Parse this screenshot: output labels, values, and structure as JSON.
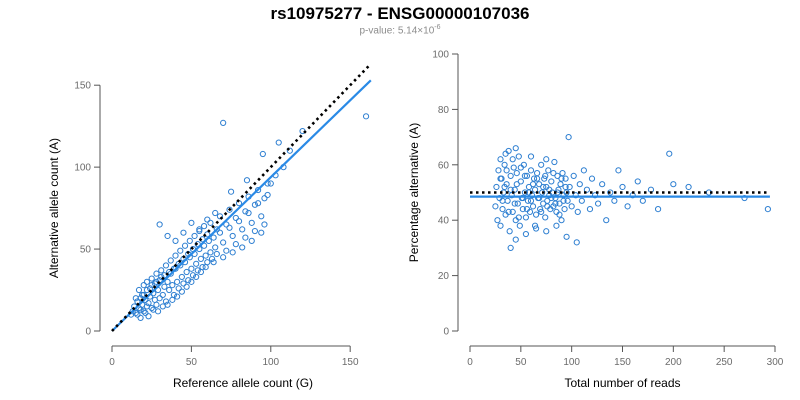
{
  "header": {
    "title": "rs10975277 - ENSG00000107036",
    "pvalue_prefix": "p-value: 5.14×10",
    "pvalue_exponent": "-6"
  },
  "colors": {
    "points": "#2e7fd1",
    "fit_line": "#2a8ae6",
    "reference_line": "#000000",
    "axis": "#555555"
  },
  "chart_data": [
    {
      "type": "scatter",
      "xlabel": "Reference allele count (G)",
      "ylabel": "Alternative allele count (A)",
      "xlim": [
        0,
        165
      ],
      "ylim": [
        0,
        155
      ],
      "xticks": [
        0,
        50,
        100,
        150
      ],
      "yticks": [
        0,
        50,
        100,
        150
      ],
      "grid": false,
      "fit_line": [
        [
          0,
          0
        ],
        [
          163,
          153
        ]
      ],
      "reference_line": [
        [
          0,
          0
        ],
        [
          163,
          163
        ]
      ],
      "points": [
        [
          12,
          10
        ],
        [
          13,
          12
        ],
        [
          14,
          15
        ],
        [
          15,
          11
        ],
        [
          16,
          18
        ],
        [
          17,
          14
        ],
        [
          18,
          20
        ],
        [
          18,
          13
        ],
        [
          19,
          16
        ],
        [
          20,
          22
        ],
        [
          20,
          12
        ],
        [
          21,
          19
        ],
        [
          22,
          25
        ],
        [
          22,
          15
        ],
        [
          23,
          17
        ],
        [
          24,
          21
        ],
        [
          25,
          28
        ],
        [
          25,
          14
        ],
        [
          26,
          23
        ],
        [
          27,
          19
        ],
        [
          28,
          30
        ],
        [
          28,
          16
        ],
        [
          29,
          25
        ],
        [
          30,
          20
        ],
        [
          31,
          33
        ],
        [
          32,
          22
        ],
        [
          33,
          27
        ],
        [
          34,
          18
        ],
        [
          35,
          30
        ],
        [
          36,
          25
        ],
        [
          37,
          35
        ],
        [
          38,
          28
        ],
        [
          39,
          22
        ],
        [
          40,
          38
        ],
        [
          41,
          30
        ],
        [
          42,
          26
        ],
        [
          43,
          40
        ],
        [
          44,
          33
        ],
        [
          45,
          29
        ],
        [
          46,
          42
        ],
        [
          47,
          36
        ],
        [
          48,
          31
        ],
        [
          49,
          45
        ],
        [
          50,
          38
        ],
        [
          51,
          34
        ],
        [
          52,
          47
        ],
        [
          53,
          41
        ],
        [
          54,
          37
        ],
        [
          55,
          50
        ],
        [
          56,
          44
        ],
        [
          57,
          39
        ],
        [
          58,
          52
        ],
        [
          59,
          46
        ],
        [
          60,
          42
        ],
        [
          61,
          55
        ],
        [
          62,
          48
        ],
        [
          63,
          44
        ],
        [
          64,
          57
        ],
        [
          65,
          51
        ],
        [
          66,
          47
        ],
        [
          68,
          60
        ],
        [
          70,
          54
        ],
        [
          72,
          49
        ],
        [
          74,
          63
        ],
        [
          76,
          58
        ],
        [
          78,
          53
        ],
        [
          80,
          67
        ],
        [
          82,
          62
        ],
        [
          84,
          57
        ],
        [
          86,
          72
        ],
        [
          88,
          66
        ],
        [
          90,
          61
        ],
        [
          92,
          78
        ],
        [
          94,
          70
        ],
        [
          96,
          65
        ],
        [
          98,
          83
        ],
        [
          100,
          90
        ],
        [
          103,
          95
        ],
        [
          108,
          100
        ],
        [
          112,
          110
        ],
        [
          120,
          122
        ],
        [
          70,
          127
        ],
        [
          160,
          131
        ],
        [
          15,
          20
        ],
        [
          16,
          10
        ],
        [
          17,
          25
        ],
        [
          18,
          8
        ],
        [
          19,
          22
        ],
        [
          20,
          28
        ],
        [
          21,
          11
        ],
        [
          22,
          30
        ],
        [
          23,
          9
        ],
        [
          24,
          26
        ],
        [
          25,
          32
        ],
        [
          26,
          13
        ],
        [
          27,
          29
        ],
        [
          28,
          35
        ],
        [
          29,
          12
        ],
        [
          30,
          31
        ],
        [
          31,
          37
        ],
        [
          32,
          15
        ],
        [
          33,
          34
        ],
        [
          34,
          40
        ],
        [
          35,
          16
        ],
        [
          36,
          36
        ],
        [
          37,
          43
        ],
        [
          38,
          19
        ],
        [
          39,
          38
        ],
        [
          40,
          46
        ],
        [
          41,
          21
        ],
        [
          42,
          41
        ],
        [
          43,
          49
        ],
        [
          44,
          24
        ],
        [
          45,
          44
        ],
        [
          46,
          52
        ],
        [
          47,
          27
        ],
        [
          48,
          47
        ],
        [
          49,
          55
        ],
        [
          50,
          30
        ],
        [
          51,
          50
        ],
        [
          52,
          58
        ],
        [
          53,
          33
        ],
        [
          54,
          53
        ],
        [
          55,
          61
        ],
        [
          56,
          36
        ],
        [
          57,
          56
        ],
        [
          58,
          64
        ],
        [
          59,
          39
        ],
        [
          60,
          59
        ],
        [
          62,
          66
        ],
        [
          64,
          42
        ],
        [
          66,
          62
        ],
        [
          68,
          70
        ],
        [
          70,
          45
        ],
        [
          72,
          65
        ],
        [
          74,
          74
        ],
        [
          76,
          48
        ],
        [
          78,
          69
        ],
        [
          80,
          78
        ],
        [
          82,
          51
        ],
        [
          84,
          73
        ],
        [
          86,
          82
        ],
        [
          88,
          55
        ],
        [
          90,
          77
        ],
        [
          92,
          86
        ],
        [
          94,
          60
        ],
        [
          96,
          81
        ],
        [
          98,
          90
        ],
        [
          30,
          65
        ],
        [
          35,
          58
        ],
        [
          40,
          55
        ],
        [
          45,
          60
        ],
        [
          50,
          66
        ],
        [
          55,
          62
        ],
        [
          60,
          68
        ],
        [
          65,
          72
        ],
        [
          75,
          85
        ],
        [
          85,
          92
        ],
        [
          95,
          108
        ],
        [
          105,
          115
        ]
      ]
    },
    {
      "type": "scatter",
      "xlabel": "Total number of reads",
      "ylabel": "Percentage alternative (A)",
      "xlim": [
        0,
        300
      ],
      "ylim": [
        0,
        100
      ],
      "xticks": [
        0,
        50,
        100,
        150,
        200,
        250,
        300
      ],
      "yticks": [
        0,
        20,
        40,
        60,
        80,
        100
      ],
      "grid": false,
      "fit_line": [
        [
          0,
          48.5
        ],
        [
          295,
          48.5
        ]
      ],
      "reference_line": [
        [
          0,
          50
        ],
        [
          295,
          50
        ]
      ],
      "points": [
        [
          25,
          45
        ],
        [
          26,
          52
        ],
        [
          27,
          40
        ],
        [
          28,
          58
        ],
        [
          29,
          48
        ],
        [
          30,
          62
        ],
        [
          30,
          38
        ],
        [
          31,
          55
        ],
        [
          32,
          44
        ],
        [
          33,
          50
        ],
        [
          34,
          60
        ],
        [
          35,
          42
        ],
        [
          36,
          53
        ],
        [
          37,
          47
        ],
        [
          38,
          65
        ],
        [
          39,
          36
        ],
        [
          40,
          56
        ],
        [
          41,
          49
        ],
        [
          42,
          43
        ],
        [
          43,
          59
        ],
        [
          44,
          51
        ],
        [
          45,
          40
        ],
        [
          46,
          57
        ],
        [
          47,
          46
        ],
        [
          48,
          63
        ],
        [
          49,
          38
        ],
        [
          50,
          54
        ],
        [
          51,
          48
        ],
        [
          52,
          44
        ],
        [
          53,
          60
        ],
        [
          54,
          50
        ],
        [
          55,
          41
        ],
        [
          56,
          56
        ],
        [
          57,
          47
        ],
        [
          58,
          52
        ],
        [
          59,
          43
        ],
        [
          60,
          58
        ],
        [
          61,
          49
        ],
        [
          62,
          45
        ],
        [
          63,
          55
        ],
        [
          64,
          51
        ],
        [
          65,
          42
        ],
        [
          66,
          57
        ],
        [
          67,
          48
        ],
        [
          68,
          53
        ],
        [
          69,
          44
        ],
        [
          70,
          60
        ],
        [
          71,
          50
        ],
        [
          72,
          46
        ],
        [
          73,
          55
        ],
        [
          74,
          41
        ],
        [
          75,
          52
        ],
        [
          76,
          47
        ],
        [
          77,
          58
        ],
        [
          78,
          49
        ],
        [
          79,
          44
        ],
        [
          80,
          54
        ],
        [
          81,
          50
        ],
        [
          82,
          45
        ],
        [
          83,
          61
        ],
        [
          84,
          48
        ],
        [
          85,
          43
        ],
        [
          86,
          56
        ],
        [
          87,
          51
        ],
        [
          88,
          46
        ],
        [
          89,
          53
        ],
        [
          90,
          40
        ],
        [
          91,
          57
        ],
        [
          92,
          49
        ],
        [
          93,
          44
        ],
        [
          94,
          55
        ],
        [
          95,
          50
        ],
        [
          96,
          47
        ],
        [
          97,
          70
        ],
        [
          98,
          52
        ],
        [
          100,
          45
        ],
        [
          102,
          56
        ],
        [
          104,
          49
        ],
        [
          106,
          43
        ],
        [
          108,
          53
        ],
        [
          110,
          47
        ],
        [
          112,
          58
        ],
        [
          115,
          51
        ],
        [
          118,
          44
        ],
        [
          120,
          55
        ],
        [
          123,
          49
        ],
        [
          126,
          46
        ],
        [
          130,
          53
        ],
        [
          134,
          40
        ],
        [
          138,
          50
        ],
        [
          142,
          47
        ],
        [
          146,
          58
        ],
        [
          150,
          52
        ],
        [
          155,
          45
        ],
        [
          160,
          49
        ],
        [
          165,
          54
        ],
        [
          170,
          47
        ],
        [
          178,
          51
        ],
        [
          185,
          44
        ],
        [
          196,
          64
        ],
        [
          200,
          53
        ],
        [
          215,
          52
        ],
        [
          235,
          50
        ],
        [
          270,
          48
        ],
        [
          293,
          44
        ],
        [
          40,
          30
        ],
        [
          45,
          33
        ],
        [
          55,
          35
        ],
        [
          65,
          37
        ],
        [
          75,
          36
        ],
        [
          85,
          38
        ],
        [
          95,
          34
        ],
        [
          105,
          32
        ],
        [
          35,
          64
        ],
        [
          45,
          66
        ],
        [
          60,
          63
        ],
        [
          75,
          62
        ],
        [
          30,
          55
        ],
        [
          32,
          47
        ],
        [
          34,
          52
        ],
        [
          36,
          58
        ],
        [
          38,
          43
        ],
        [
          40,
          51
        ],
        [
          42,
          62
        ],
        [
          44,
          46
        ],
        [
          46,
          53
        ],
        [
          48,
          41
        ],
        [
          50,
          59
        ],
        [
          52,
          48
        ],
        [
          54,
          56
        ],
        [
          56,
          44
        ],
        [
          58,
          50
        ],
        [
          60,
          47
        ],
        [
          62,
          53
        ],
        [
          64,
          38
        ],
        [
          66,
          55
        ],
        [
          68,
          48
        ],
        [
          70,
          43
        ],
        [
          72,
          52
        ],
        [
          74,
          56
        ],
        [
          76,
          45
        ],
        [
          78,
          51
        ],
        [
          80,
          48
        ],
        [
          82,
          57
        ],
        [
          84,
          46
        ],
        [
          86,
          50
        ],
        [
          88,
          42
        ],
        [
          90,
          55
        ],
        [
          92,
          47
        ],
        [
          94,
          52
        ]
      ]
    }
  ]
}
